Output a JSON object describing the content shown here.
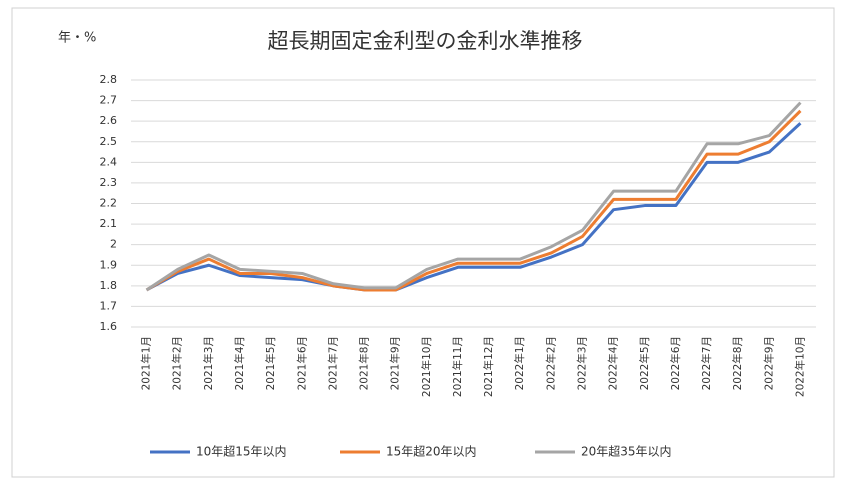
{
  "chart_data": {
    "type": "line",
    "title": "超長期固定金利型の金利水準推移",
    "y_label": "年・%",
    "categories": [
      "2021年1月",
      "2021年2月",
      "2021年3月",
      "2021年4月",
      "2021年5月",
      "2021年6月",
      "2021年7月",
      "2021年8月",
      "2021年9月",
      "2021年10月",
      "2021年11月",
      "2021年12月",
      "2022年1月",
      "2022年2月",
      "2022年3月",
      "2022年4月",
      "2022年5月",
      "2022年6月",
      "2022年7月",
      "2022年8月",
      "2022年9月",
      "2022年10月"
    ],
    "series": [
      {
        "name": "10年超15年以内",
        "color": "#4472c4",
        "values": [
          1.78,
          1.86,
          1.9,
          1.85,
          1.84,
          1.83,
          1.8,
          1.78,
          1.78,
          1.84,
          1.89,
          1.89,
          1.89,
          1.94,
          2.0,
          2.17,
          2.19,
          2.19,
          2.4,
          2.4,
          2.45,
          2.59
        ]
      },
      {
        "name": "15年超20年以内",
        "color": "#ed7d31",
        "values": [
          1.78,
          1.87,
          1.93,
          1.86,
          1.86,
          1.84,
          1.8,
          1.78,
          1.78,
          1.86,
          1.91,
          1.91,
          1.91,
          1.96,
          2.04,
          2.22,
          2.22,
          2.22,
          2.44,
          2.44,
          2.5,
          2.65
        ]
      },
      {
        "name": "20年超35年以内",
        "color": "#a5a5a5",
        "values": [
          1.78,
          1.88,
          1.95,
          1.88,
          1.87,
          1.86,
          1.81,
          1.79,
          1.79,
          1.88,
          1.93,
          1.93,
          1.93,
          1.99,
          2.07,
          2.26,
          2.26,
          2.26,
          2.49,
          2.49,
          2.53,
          2.69
        ]
      }
    ],
    "ylim": [
      1.6,
      2.8
    ],
    "yticks": [
      1.6,
      1.7,
      1.8,
      1.9,
      2,
      2.1,
      2.2,
      2.3,
      2.4,
      2.5,
      2.6,
      2.7,
      2.8
    ],
    "grid": true
  }
}
